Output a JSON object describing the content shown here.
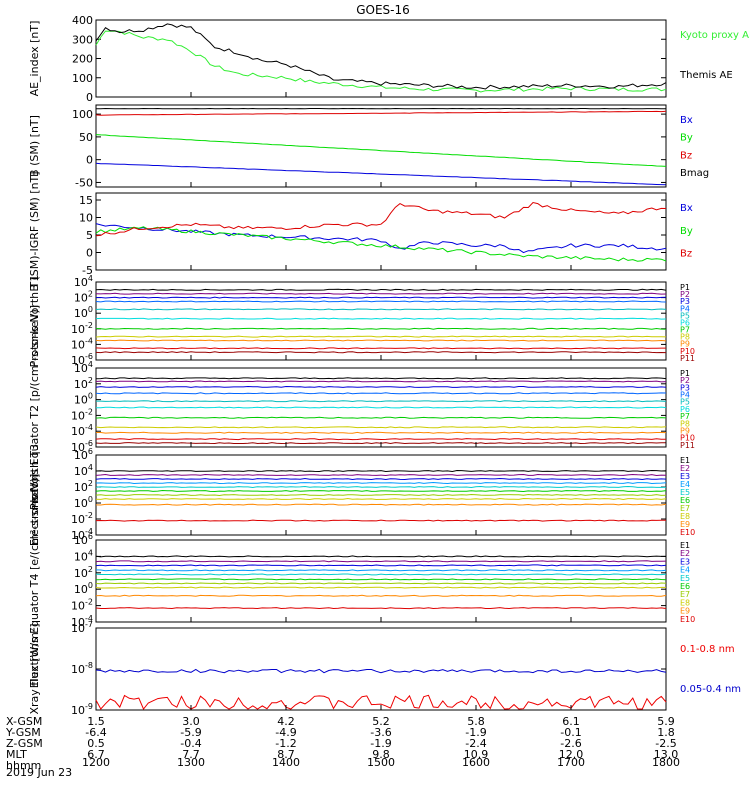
{
  "title": "GOES-16",
  "date": "2019 Jun 23",
  "colors": {
    "black": "#000000",
    "blue": "#0000dd",
    "green": "#00dd00",
    "red": "#dd0000",
    "ae_green": "#33ee33"
  },
  "x_ticks": [
    "1200",
    "1300",
    "1400",
    "1500",
    "1600",
    "1700",
    "1800"
  ],
  "ephemeris": {
    "labels": [
      "X-GSM",
      "Y-GSM",
      "Z-GSM",
      "MLT",
      "hhmm"
    ],
    "rows": [
      [
        "1.5",
        "3.0",
        "4.2",
        "5.2",
        "5.8",
        "6.1",
        "5.9"
      ],
      [
        "-6.4",
        "-5.9",
        "-4.9",
        "-3.6",
        "-1.9",
        "-0.1",
        "1.8"
      ],
      [
        "0.5",
        "-0.4",
        "-1.2",
        "-1.9",
        "-2.4",
        "-2.6",
        "-2.5"
      ],
      [
        "6.7",
        "7.7",
        "8.7",
        "9.8",
        "10.9",
        "12.0",
        "13.0"
      ]
    ]
  },
  "chart_data": [
    {
      "type": "line",
      "panel": "ae",
      "ylabel": "AE_index [nT]",
      "ylim": [
        0,
        400
      ],
      "ticks": [
        "0",
        "100",
        "200",
        "300",
        "400"
      ],
      "series": [
        {
          "name": "Kyoto proxy AE",
          "color": "#33ee33",
          "x": [
            0,
            0.1,
            0.25,
            0.5,
            0.75,
            1.0,
            1.25,
            1.5,
            1.75,
            2.0,
            2.25,
            2.5,
            3.0,
            3.5,
            4.0,
            4.5,
            5.0,
            5.5,
            6.0
          ],
          "values": [
            270,
            350,
            340,
            310,
            300,
            240,
            160,
            120,
            110,
            100,
            80,
            70,
            50,
            40,
            35,
            40,
            45,
            40,
            40
          ]
        },
        {
          "name": "Themis AE",
          "color": "#000000",
          "x": [
            0,
            0.1,
            0.25,
            0.5,
            0.75,
            1.0,
            1.25,
            1.5,
            1.75,
            2.0,
            2.25,
            2.5,
            3.0,
            3.5,
            4.0,
            4.5,
            5.0,
            5.5,
            6.0
          ],
          "values": [
            300,
            360,
            340,
            350,
            380,
            360,
            260,
            230,
            190,
            170,
            130,
            90,
            70,
            60,
            50,
            55,
            60,
            55,
            70
          ]
        }
      ]
    },
    {
      "type": "line",
      "panel": "b_sm",
      "ylabel": "B (SM) [nT]",
      "ylim": [
        -60,
        120
      ],
      "ticks": [
        "-50",
        "0",
        "50",
        "100"
      ],
      "series": [
        {
          "name": "Bx",
          "color": "#0000dd",
          "x": [
            0,
            6
          ],
          "values": [
            -8,
            -55
          ]
        },
        {
          "name": "By",
          "color": "#00dd00",
          "x": [
            0,
            6
          ],
          "values": [
            55,
            -15
          ]
        },
        {
          "name": "Bz",
          "color": "#dd0000",
          "x": [
            0,
            6
          ],
          "values": [
            98,
            106
          ]
        },
        {
          "name": "Bmag",
          "color": "#000000",
          "x": [
            0,
            6
          ],
          "values": [
            112,
            112
          ]
        }
      ]
    },
    {
      "type": "line",
      "panel": "b_igrf",
      "ylabel": "B (SM)-IGRF (SM) [nT]",
      "ylim": [
        -5,
        17
      ],
      "ticks": [
        "-5",
        "0",
        "5",
        "10",
        "15"
      ],
      "series": [
        {
          "name": "Bx",
          "color": "#0000dd",
          "x": [
            0,
            0.5,
            1.0,
            1.5,
            2.0,
            2.5,
            3.0,
            3.2,
            3.5,
            4.0,
            4.3,
            4.5,
            5.0,
            5.5,
            6.0
          ],
          "values": [
            8,
            7,
            6,
            5,
            4.5,
            4,
            3.5,
            1,
            3,
            2,
            2,
            0,
            2,
            2,
            1
          ]
        },
        {
          "name": "By",
          "color": "#00dd00",
          "x": [
            0,
            0.5,
            1.0,
            1.5,
            2.0,
            2.5,
            3.0,
            3.5,
            4.0,
            4.5,
            5.0,
            5.5,
            6.0
          ],
          "values": [
            6,
            7,
            6,
            5,
            4,
            3,
            2,
            1,
            0,
            -1,
            -1.5,
            -2,
            -2
          ]
        },
        {
          "name": "Bz",
          "color": "#dd0000",
          "x": [
            0,
            0.5,
            1.0,
            1.5,
            2.0,
            2.5,
            3.0,
            3.2,
            3.5,
            4.0,
            4.3,
            4.6,
            5.0,
            5.5,
            6.0
          ],
          "values": [
            5,
            7,
            8,
            7,
            7,
            8,
            8,
            14,
            12,
            11,
            10,
            14,
            12,
            11,
            13
          ]
        }
      ]
    },
    {
      "type": "line",
      "panel": "protons_t1",
      "ylabel": "Protons North T1",
      "log": true,
      "ylim_exp": [
        -6,
        4
      ],
      "ticks": [
        "10^-6",
        "10^-4",
        "10^-2",
        "10^0",
        "10^2",
        "10^4"
      ],
      "series": [
        {
          "name": "P1",
          "color": "#000000",
          "log_values": [
            3.0
          ]
        },
        {
          "name": "P2",
          "color": "#800080",
          "log_values": [
            2.5
          ]
        },
        {
          "name": "P3",
          "color": "#0000dd",
          "log_values": [
            2.0
          ]
        },
        {
          "name": "P4",
          "color": "#0066ff",
          "log_values": [
            1.5
          ]
        },
        {
          "name": "P5",
          "color": "#00bbbb",
          "log_values": [
            0.5
          ]
        },
        {
          "name": "P6",
          "color": "#00dddd",
          "log_values": [
            -0.7
          ]
        },
        {
          "name": "P7",
          "color": "#00cc00",
          "log_values": [
            -2.0
          ]
        },
        {
          "name": "P8",
          "color": "#cccc00",
          "log_values": [
            -3.0
          ]
        },
        {
          "name": "P9",
          "color": "#ff8800",
          "log_values": [
            -3.5
          ]
        },
        {
          "name": "P10",
          "color": "#dd0000",
          "log_values": [
            -4.5
          ]
        },
        {
          "name": "P11",
          "color": "#990000",
          "log_values": [
            -5.0
          ]
        }
      ]
    },
    {
      "type": "line",
      "panel": "protons_t2",
      "ylabel": "Protons Equator T2 [p/(cm²-s-sr-keV)]",
      "log": true,
      "ylim_exp": [
        -6,
        4
      ],
      "ticks": [
        "10^-6",
        "10^-4",
        "10^-2",
        "10^0",
        "10^2",
        "10^4"
      ],
      "series": [
        {
          "name": "P1",
          "color": "#000000",
          "log_values": [
            2.7
          ]
        },
        {
          "name": "P2",
          "color": "#800080",
          "log_values": [
            2.3
          ]
        },
        {
          "name": "P3",
          "color": "#0000dd",
          "log_values": [
            1.6
          ]
        },
        {
          "name": "P4",
          "color": "#0066ff",
          "log_values": [
            0.8
          ]
        },
        {
          "name": "P5",
          "color": "#00bbbb",
          "log_values": [
            -0.2
          ]
        },
        {
          "name": "P6",
          "color": "#00dddd",
          "log_values": [
            -1.0
          ]
        },
        {
          "name": "P7",
          "color": "#00cc00",
          "log_values": [
            -2.3
          ]
        },
        {
          "name": "P8",
          "color": "#cccc00",
          "log_values": [
            -3.5
          ]
        },
        {
          "name": "P9",
          "color": "#ff8800",
          "log_values": [
            -4.2
          ]
        },
        {
          "name": "P10",
          "color": "#dd0000",
          "log_values": [
            -5.0
          ]
        },
        {
          "name": "P11",
          "color": "#990000",
          "log_values": [
            -5.5
          ]
        }
      ]
    },
    {
      "type": "line",
      "panel": "electrons_t3",
      "ylabel": "Electrons North T3",
      "log": true,
      "ylim_exp": [
        -4,
        6
      ],
      "ticks": [
        "10^-4",
        "10^-2",
        "10^0",
        "10^2",
        "10^4",
        "10^6"
      ],
      "series": [
        {
          "name": "E1",
          "color": "#000000",
          "log_values": [
            4.0
          ]
        },
        {
          "name": "E2",
          "color": "#800080",
          "log_values": [
            3.5
          ]
        },
        {
          "name": "E3",
          "color": "#0000dd",
          "log_values": [
            3.0
          ]
        },
        {
          "name": "E4",
          "color": "#0099ff",
          "log_values": [
            2.5
          ]
        },
        {
          "name": "E5",
          "color": "#00cccc",
          "log_values": [
            2.0
          ]
        },
        {
          "name": "E6",
          "color": "#00cc00",
          "log_values": [
            1.5
          ]
        },
        {
          "name": "E7",
          "color": "#99cc00",
          "log_values": [
            1.0
          ]
        },
        {
          "name": "E8",
          "color": "#cccc00",
          "log_values": [
            0.5
          ]
        },
        {
          "name": "E9",
          "color": "#ff8800",
          "log_values": [
            -0.2
          ]
        },
        {
          "name": "E10",
          "color": "#dd0000",
          "log_values": [
            -2.2
          ]
        }
      ]
    },
    {
      "type": "line",
      "panel": "electrons_t4",
      "ylabel": "Electrons Equator T4 [e/(cm²-s-sr-keV)]",
      "log": true,
      "ylim_exp": [
        -4,
        6
      ],
      "ticks": [
        "10^-4",
        "10^-2",
        "10^0",
        "10^2",
        "10^4",
        "10^6"
      ],
      "series": [
        {
          "name": "E1",
          "color": "#000000",
          "log_values": [
            4.0
          ]
        },
        {
          "name": "E2",
          "color": "#800080",
          "log_values": [
            3.4
          ]
        },
        {
          "name": "E3",
          "color": "#0000dd",
          "log_values": [
            2.9
          ]
        },
        {
          "name": "E4",
          "color": "#0099ff",
          "log_values": [
            2.3
          ]
        },
        {
          "name": "E5",
          "color": "#00cccc",
          "log_values": [
            1.8
          ]
        },
        {
          "name": "E6",
          "color": "#00cc00",
          "log_values": [
            1.2
          ]
        },
        {
          "name": "E7",
          "color": "#99cc00",
          "log_values": [
            0.7
          ]
        },
        {
          "name": "E8",
          "color": "#cccc00",
          "log_values": [
            0.2
          ]
        },
        {
          "name": "E9",
          "color": "#ff8800",
          "log_values": [
            -0.8
          ]
        },
        {
          "name": "E10",
          "color": "#dd0000",
          "log_values": [
            -2.3
          ]
        }
      ]
    },
    {
      "type": "line",
      "panel": "xray",
      "ylabel": "Xray flux [W/m²]",
      "log": true,
      "ylim_exp": [
        -9,
        -7
      ],
      "ticks": [
        "10^-9",
        "10^-8",
        "10^-7"
      ],
      "series": [
        {
          "name": "0.1-0.8 nm",
          "color": "#ee0000",
          "log_values": [
            -8.82
          ]
        },
        {
          "name": "0.05-0.4 nm",
          "color": "#0000cc",
          "log_values": [
            -8.05
          ]
        }
      ]
    }
  ]
}
